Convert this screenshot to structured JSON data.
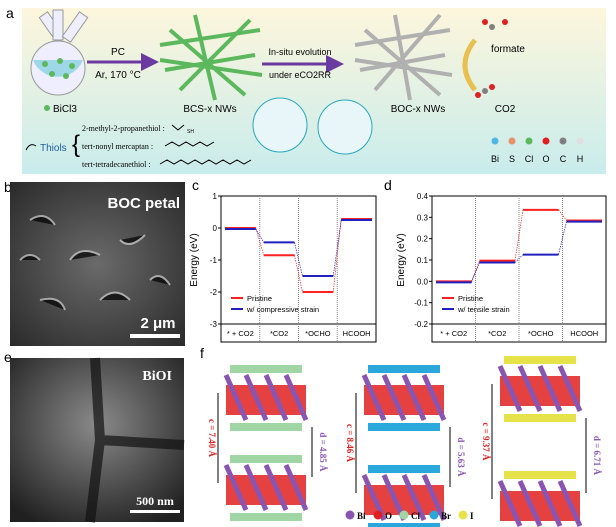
{
  "panel_labels": {
    "a": "a",
    "b": "b",
    "c": "c",
    "d": "d",
    "e": "e",
    "f": "f"
  },
  "panel_a": {
    "arrow1_top": "PC",
    "arrow1_bottom": "Ar, 170 °C",
    "precursor": "BiCl3",
    "nanowires1": "BCS-x NWs",
    "arrow2_top": "In-situ evolution",
    "arrow2_bottom": "under eCO2RR",
    "nanowires2": "BOC-x NWs",
    "product": "formate",
    "reactant": "CO2",
    "thiols_label": "Thiols",
    "thiols": [
      "2-methyl-2-propanethiol :",
      "tert-nonyl mercaptan :",
      "tert-tetradecanethiol :"
    ],
    "sh_label": "SH",
    "legend": [
      {
        "label": "Bi",
        "color": "#4fb6e3"
      },
      {
        "label": "S",
        "color": "#e8906a"
      },
      {
        "label": "Cl",
        "color": "#5cb85c"
      },
      {
        "label": "O",
        "color": "#e02020"
      },
      {
        "label": "C",
        "color": "#808080"
      },
      {
        "label": "H",
        "color": "#e0e0e0"
      }
    ]
  },
  "panel_b": {
    "title": "BOC petal",
    "scale": "2 μm"
  },
  "panel_e": {
    "title": "BiOI",
    "scale": "500 nm"
  },
  "chart_data": [
    {
      "type": "line",
      "panel": "c",
      "ylabel": "Energy (eV)",
      "ylim": [
        -3,
        1
      ],
      "yticks": [
        "1",
        "0",
        "-1",
        "-2",
        "-3"
      ],
      "categories": [
        "* + CO2",
        "*CO2",
        "*OCHO",
        "HCOOH"
      ],
      "series": [
        {
          "name": "Pristine",
          "color": "#ff2020",
          "values": [
            0,
            -0.85,
            -2.0,
            0.28
          ]
        },
        {
          "name": "w/ compressive strain",
          "color": "#2020c0",
          "values": [
            -0.03,
            -0.45,
            -1.5,
            0.25
          ]
        }
      ],
      "legend": "bottom-left"
    },
    {
      "type": "line",
      "panel": "d",
      "ylabel": "Energy (eV)",
      "ylim": [
        -0.2,
        0.4
      ],
      "yticks": [
        "0.4",
        "0.3",
        "0.2",
        "0.1",
        "0.0",
        "-0.1",
        "-0.2"
      ],
      "categories": [
        "* + CO2",
        "*CO2",
        "*OCHO",
        "HCOOH"
      ],
      "series": [
        {
          "name": "Pristine",
          "color": "#ff2020",
          "values": [
            0,
            0.097,
            0.335,
            0.285
          ]
        },
        {
          "name": "w/ tensile strain",
          "color": "#2020c0",
          "values": [
            -0.005,
            0.088,
            0.125,
            0.28
          ]
        }
      ],
      "legend": "bottom-left"
    }
  ],
  "panel_f": {
    "structures": [
      {
        "c": "c = 7.40 Å",
        "d": "d = 4.85 Å",
        "halogen_color": "#9fd6a4"
      },
      {
        "c": "c = 8.46 Å",
        "d": "d = 5.63 Å",
        "halogen_color": "#2aa8dc"
      },
      {
        "c": "c = 9.37 Å",
        "d": "d = 6.71 Å",
        "halogen_color": "#e6e24a"
      }
    ],
    "legend": [
      {
        "label": "Bi",
        "color": "#8a55b0"
      },
      {
        "label": "O",
        "color": "#e02020"
      },
      {
        "label": "Cl",
        "color": "#9fd6a4"
      },
      {
        "label": "Br",
        "color": "#2aa8dc"
      },
      {
        "label": "I",
        "color": "#e6e24a"
      }
    ]
  }
}
